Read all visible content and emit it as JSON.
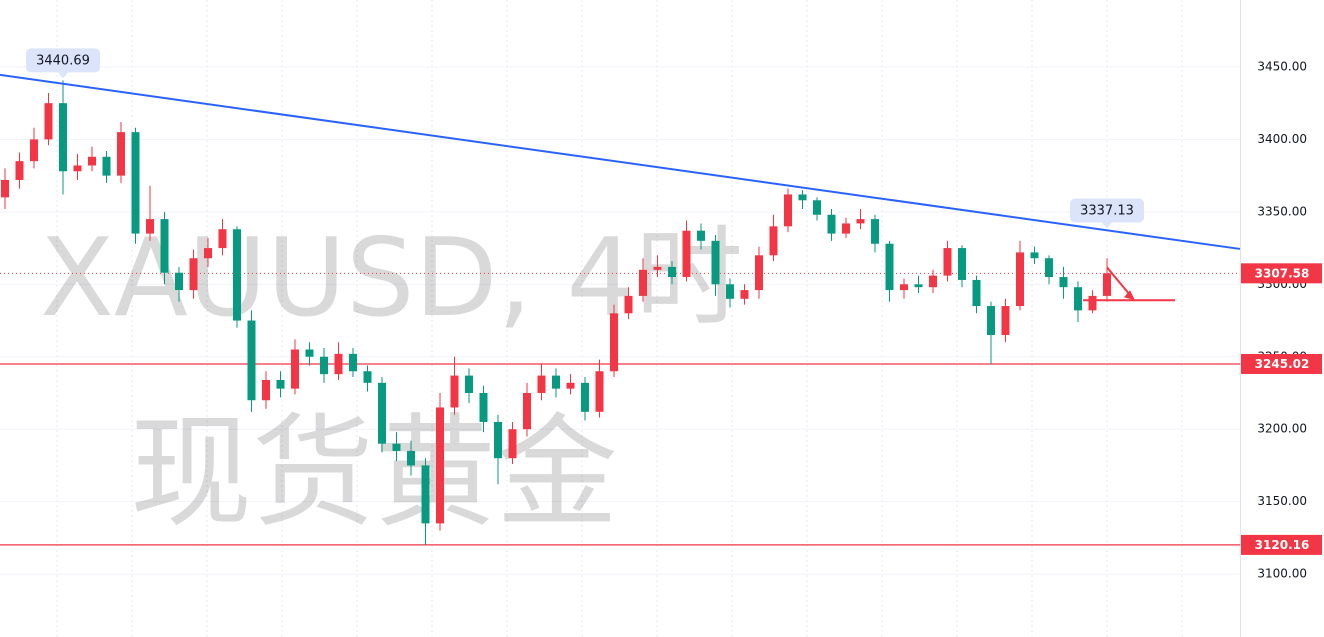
{
  "chart_data": {
    "type": "candlestick",
    "watermark": "XAUUSD, 4时",
    "watermark_name": "现货黄金",
    "up_color": "#f23645",
    "down_color": "#089981",
    "ylim": [
      3056.6,
      3496.2
    ],
    "yticks": [
      {
        "value": 3100,
        "label": "3100.00"
      },
      {
        "value": 3150,
        "label": "3150.00"
      },
      {
        "value": 3200,
        "label": "3200.00"
      },
      {
        "value": 3250,
        "label": "3250.00"
      },
      {
        "value": 3300,
        "label": "3300.00"
      },
      {
        "value": 3350,
        "label": "3350.00"
      },
      {
        "value": 3400,
        "label": "3400.00"
      },
      {
        "value": 3450,
        "label": "3450.00"
      }
    ],
    "open": [
      3360,
      3372,
      3385,
      3400,
      3425,
      3378,
      3382,
      3388,
      3375,
      3405,
      3335,
      3345,
      3308,
      3296,
      3318,
      3325,
      3338,
      3275,
      3220,
      3234,
      3228,
      3255,
      3250,
      3238,
      3252,
      3240,
      3232,
      3190,
      3185,
      3175,
      3135,
      3215,
      3237,
      3225,
      3205,
      3180,
      3200,
      3225,
      3237,
      3228,
      3232,
      3212,
      3240,
      3280,
      3292,
      3310,
      3312,
      3305,
      3337,
      3330,
      3300,
      3290,
      3296,
      3320,
      3340,
      3362,
      3358,
      3348,
      3335,
      3342,
      3345,
      3328,
      3296,
      3300,
      3298,
      3306,
      3325,
      3303,
      3285,
      3265,
      3285,
      3322,
      3318,
      3305,
      3298,
      3282,
      3292
    ],
    "high": [
      3380,
      3391,
      3408,
      3432,
      3440.69,
      3390,
      3395,
      3392,
      3412,
      3408,
      3368,
      3350,
      3312,
      3324,
      3332,
      3345,
      3340,
      3282,
      3240,
      3240,
      3262,
      3260,
      3256,
      3260,
      3256,
      3244,
      3236,
      3198,
      3192,
      3180,
      3225,
      3250,
      3242,
      3230,
      3210,
      3205,
      3232,
      3245,
      3242,
      3238,
      3236,
      3248,
      3286,
      3298,
      3318,
      3320,
      3316,
      3344,
      3342,
      3334,
      3304,
      3300,
      3326,
      3348,
      3366,
      3365,
      3360,
      3352,
      3346,
      3352,
      3348,
      3330,
      3304,
      3306,
      3310,
      3330,
      3327,
      3306,
      3288,
      3290,
      3330,
      3326,
      3320,
      3312,
      3302,
      3296,
      3318
    ],
    "low": [
      3352,
      3366,
      3380,
      3396,
      3362,
      3372,
      3378,
      3370,
      3370,
      3328,
      3330,
      3300,
      3288,
      3290,
      3312,
      3320,
      3270,
      3212,
      3214,
      3222,
      3224,
      3244,
      3232,
      3234,
      3236,
      3226,
      3184,
      3178,
      3168,
      3120.16,
      3130,
      3210,
      3218,
      3198,
      3162,
      3176,
      3195,
      3220,
      3222,
      3224,
      3206,
      3208,
      3236,
      3276,
      3288,
      3305,
      3300,
      3302,
      3324,
      3292,
      3284,
      3286,
      3290,
      3316,
      3336,
      3352,
      3344,
      3330,
      3332,
      3338,
      3322,
      3288,
      3290,
      3294,
      3294,
      3302,
      3298,
      3280,
      3245.02,
      3260,
      3282,
      3314,
      3300,
      3290,
      3274,
      3280,
      3288
    ],
    "close": [
      3372,
      3385,
      3400,
      3425,
      3378,
      3382,
      3388,
      3375,
      3405,
      3335,
      3345,
      3308,
      3296,
      3318,
      3325,
      3338,
      3275,
      3220,
      3234,
      3228,
      3255,
      3250,
      3238,
      3252,
      3240,
      3232,
      3190,
      3185,
      3175,
      3135,
      3215,
      3237,
      3225,
      3205,
      3180,
      3200,
      3225,
      3237,
      3228,
      3232,
      3212,
      3240,
      3280,
      3292,
      3310,
      3312,
      3305,
      3337,
      3330,
      3300,
      3290,
      3296,
      3320,
      3340,
      3362,
      3358,
      3348,
      3335,
      3342,
      3345,
      3328,
      3296,
      3300,
      3298,
      3306,
      3325,
      3303,
      3285,
      3265,
      3285,
      3322,
      3318,
      3305,
      3298,
      3282,
      3292,
      3307.58
    ],
    "trendline": {
      "start": 3444.5,
      "end": 3324.4,
      "color": "#2962ff"
    },
    "annotations": [
      {
        "value": 3440.69,
        "index": 4
      },
      {
        "value": 3337.13,
        "index": 76
      }
    ],
    "price_lines": [
      {
        "value": 3307.58,
        "style": "dotted"
      },
      {
        "value": 3245.02,
        "style": "solid"
      },
      {
        "value": 3120.16,
        "style": "solid"
      }
    ],
    "target_level": 3289
  }
}
